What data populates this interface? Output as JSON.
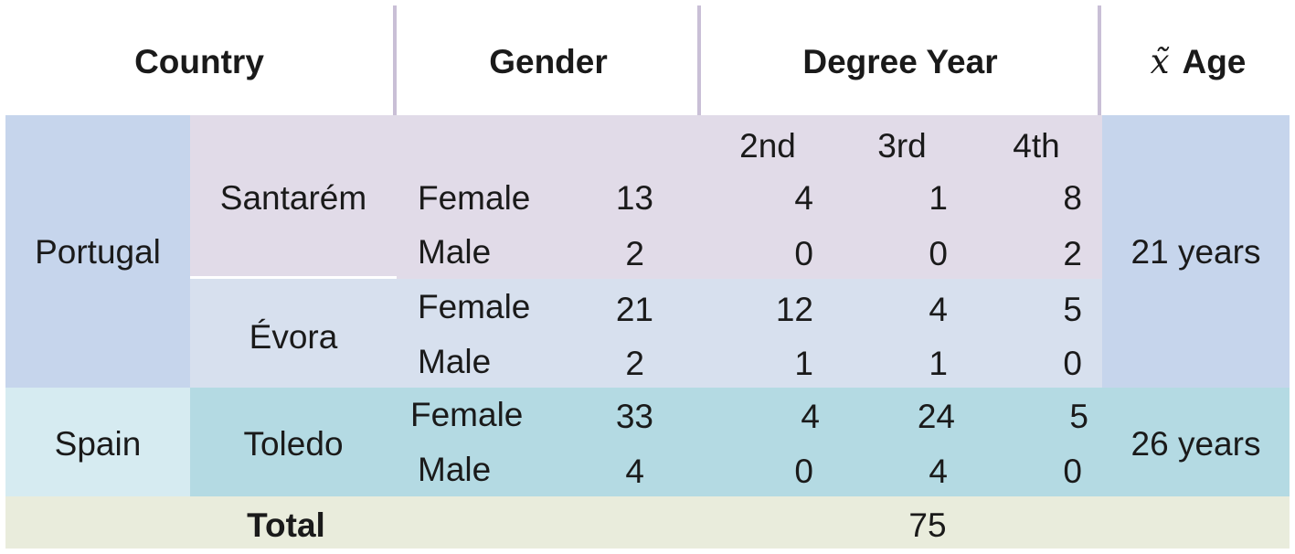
{
  "header": {
    "country": "Country",
    "gender": "Gender",
    "degree_year": "Degree Year",
    "age_symbol": "x̃",
    "age": "Age"
  },
  "degree_years": [
    "2nd",
    "3rd",
    "4th"
  ],
  "rows": {
    "portugal": {
      "country": "Portugal",
      "age": "21 years",
      "santarem": {
        "city": "Santarém",
        "female": {
          "label": "Female",
          "total": "13",
          "y2": "4",
          "y3": "1",
          "y4": "8"
        },
        "male": {
          "label": "Male",
          "total": "2",
          "y2": "0",
          "y3": "0",
          "y4": "2"
        }
      },
      "evora": {
        "city": "Évora",
        "female": {
          "label": "Female",
          "total": "21",
          "y2": "12",
          "y3": "4",
          "y4": "5"
        },
        "male": {
          "label": "Male",
          "total": "2",
          "y2": "1",
          "y3": "1",
          "y4": "0"
        }
      }
    },
    "spain": {
      "country": "Spain",
      "age": "26 years",
      "toledo": {
        "city": "Toledo",
        "female": {
          "label": "Female",
          "total": "33",
          "y2": "4",
          "y3": "24",
          "y4": "5"
        },
        "male": {
          "label": "Male",
          "total": "4",
          "y2": "0",
          "y3": "4",
          "y4": "0"
        }
      }
    }
  },
  "total": {
    "label": "Total",
    "value": "75"
  },
  "colors": {
    "portugal_bg": "#c6d5ec",
    "santarem_bg": "#e1dbe8",
    "evora_bg": "#d7e0ee",
    "spain_country_bg": "#d6ebf1",
    "spain_bg": "#b4dae3",
    "total_bg": "#e9ecdc",
    "header_divider": "#c9bfd6"
  }
}
